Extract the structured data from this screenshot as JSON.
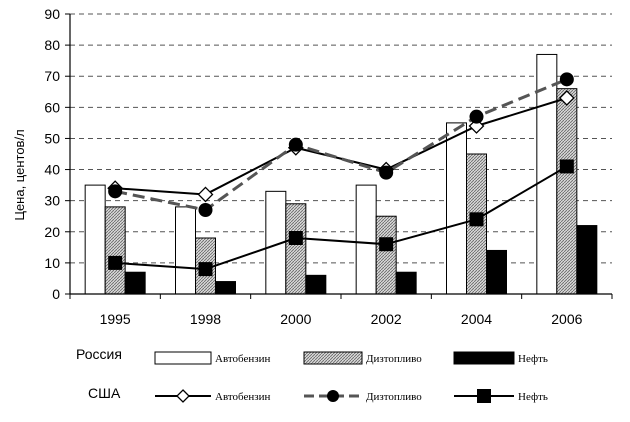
{
  "colors": {
    "russia_gasoline": "#ffffff",
    "russia_diesel": "#bdbdbd",
    "russia_oil": "#000000",
    "usa_gasoline_line": "#000000",
    "usa_diesel_line": "#555555",
    "usa_oil_line": "#000000"
  },
  "chart_data": {
    "type": "bar",
    "combo": "bars with line overlays",
    "categories": [
      "1995",
      "1998",
      "2000",
      "2002",
      "2004",
      "2006"
    ],
    "ylabel": "Цена, центов/л",
    "xlabel": "",
    "ylim": [
      0,
      90
    ],
    "yticks": [
      0,
      10,
      20,
      30,
      40,
      50,
      60,
      70,
      80,
      90
    ],
    "grid": "horizontal dashed",
    "legend": {
      "placement": "bottom",
      "groups": [
        {
          "label": "Россия",
          "items": [
            "Автобензин",
            "Дизтопливо",
            "Нефть"
          ]
        },
        {
          "label": "США",
          "items": [
            "Автобензин",
            "Дизтопливо",
            "Нефть"
          ]
        }
      ]
    },
    "bar_series": [
      {
        "group": "Россия",
        "name": "Автобензин",
        "pattern": "white",
        "values": [
          35,
          28,
          33,
          35,
          55,
          77
        ]
      },
      {
        "group": "Россия",
        "name": "Дизтопливо",
        "pattern": "hatched-gray",
        "values": [
          28,
          18,
          29,
          25,
          45,
          66
        ]
      },
      {
        "group": "Россия",
        "name": "Нефть",
        "pattern": "black",
        "values": [
          7,
          4,
          6,
          7,
          14,
          22
        ]
      }
    ],
    "line_series": [
      {
        "group": "США",
        "name": "Автобензин",
        "marker": "diamond-open",
        "style": "solid",
        "values": [
          34,
          32,
          47,
          40,
          54,
          63
        ]
      },
      {
        "group": "США",
        "name": "Дизтопливо",
        "marker": "circle-filled",
        "style": "dashed",
        "values": [
          33,
          27,
          48,
          39,
          57,
          69
        ]
      },
      {
        "group": "США",
        "name": "Нефть",
        "marker": "square-filled",
        "style": "solid",
        "values": [
          10,
          8,
          18,
          16,
          24,
          41
        ]
      }
    ]
  }
}
